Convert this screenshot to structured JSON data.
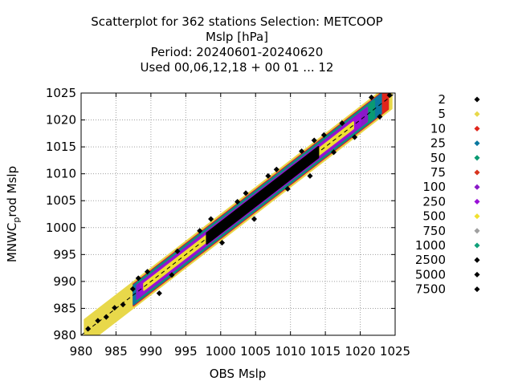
{
  "title_lines": [
    "Scatterplot for  362 stations Selection: METCOOP",
    "Mslp [hPa]",
    "Period: 20240601-20240620",
    "Used  00,06,12,18 + 00 01 ... 12"
  ],
  "chart_data": {
    "type": "scatter",
    "xlabel": "OBS Mslp",
    "ylabel_parts": {
      "before": "MNWC",
      "subscript": "p",
      "after": "rod Mslp"
    },
    "xlim": [
      980,
      1025
    ],
    "ylim": [
      980,
      1025
    ],
    "xticks": [
      980,
      985,
      990,
      995,
      1000,
      1005,
      1010,
      1015,
      1020,
      1025
    ],
    "yticks": [
      980,
      985,
      990,
      995,
      1000,
      1005,
      1010,
      1015,
      1020,
      1025
    ],
    "grid": true,
    "legend_placement": "right",
    "reference_line": "y = x",
    "legend": [
      {
        "label": "2",
        "color": "#000000"
      },
      {
        "label": "5",
        "color": "#e8d84a"
      },
      {
        "label": "10",
        "color": "#e0251b"
      },
      {
        "label": "25",
        "color": "#0a78a0"
      },
      {
        "label": "50",
        "color": "#0a9a72"
      },
      {
        "label": "75",
        "color": "#d8341e"
      },
      {
        "label": "100",
        "color": "#8a19c8"
      },
      {
        "label": "250",
        "color": "#9a10d8"
      },
      {
        "label": "500",
        "color": "#f0e030"
      },
      {
        "label": "750",
        "color": "#a0a0a0"
      },
      {
        "label": "1000",
        "color": "#11a07a"
      },
      {
        "label": "2500",
        "color": "#000000"
      },
      {
        "label": "5000",
        "color": "#000000"
      },
      {
        "label": "7500",
        "color": "#000000"
      }
    ],
    "bands": [
      {
        "color": "#e8d84a",
        "halfwidth": 2.4,
        "x": [
          980.5,
          1024.5
        ]
      },
      {
        "color": "#e0251b",
        "halfwidth": 2.0,
        "x": [
          987.5,
          1024
        ]
      },
      {
        "color": "#0a78a0",
        "halfwidth": 1.8,
        "x": [
          987.5,
          1023
        ]
      },
      {
        "color": "#0a9a72",
        "halfwidth": 1.6,
        "x": [
          988,
          1022
        ]
      },
      {
        "color": "#8a19c8",
        "halfwidth": 1.3,
        "x": [
          988,
          1021
        ]
      },
      {
        "color": "#9a10d8",
        "halfwidth": 1.0,
        "x": [
          988.5,
          1020
        ]
      },
      {
        "color": "#f0e030",
        "halfwidth": 0.6,
        "x": [
          989,
          1019
        ]
      },
      {
        "color": "#000000",
        "halfwidth": 1.0,
        "x": [
          998,
          1014
        ]
      }
    ],
    "scatter_points": [
      [
        981.0,
        981.2
      ],
      [
        982.4,
        982.7
      ],
      [
        983.6,
        983.4
      ],
      [
        984.8,
        985.1
      ],
      [
        986.0,
        985.7
      ],
      [
        987.4,
        988.6
      ],
      [
        988.2,
        990.6
      ],
      [
        989.5,
        991.8
      ],
      [
        991.2,
        987.8
      ],
      [
        993.8,
        995.6
      ],
      [
        997.0,
        999.4
      ],
      [
        998.6,
        1001.6
      ],
      [
        1000.2,
        997.2
      ],
      [
        1002.4,
        1004.8
      ],
      [
        1004.8,
        1001.6
      ],
      [
        1006.8,
        1009.6
      ],
      [
        1008.0,
        1010.8
      ],
      [
        1009.6,
        1007.2
      ],
      [
        1011.6,
        1014.2
      ],
      [
        1012.8,
        1009.6
      ],
      [
        1014.8,
        1017.2
      ],
      [
        1016.2,
        1014.0
      ],
      [
        1017.4,
        1019.4
      ],
      [
        1019.2,
        1016.8
      ],
      [
        1021.6,
        1024.2
      ],
      [
        1022.8,
        1020.6
      ],
      [
        1024.2,
        1024.6
      ],
      [
        993.0,
        991.2
      ],
      [
        1003.6,
        1006.4
      ],
      [
        1013.4,
        1016.2
      ]
    ]
  }
}
